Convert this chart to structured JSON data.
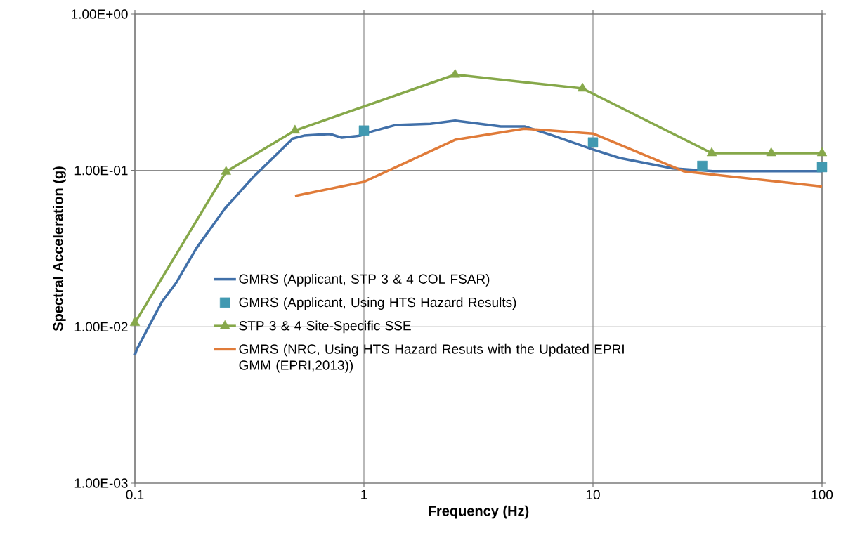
{
  "chart_data": {
    "type": "line",
    "xlabel": "Frequency (Hz)",
    "ylabel": "Spectral Acceleration (g)",
    "log": "xy",
    "grid": true,
    "legend": "left",
    "xlim": [
      0.1,
      100
    ],
    "xticks": [
      0.1,
      1,
      10,
      100
    ],
    "ylim": [
      0.001,
      1
    ],
    "yticks": [
      {
        "value": 0.001,
        "label": "1.00E-03"
      },
      {
        "value": 0.01,
        "label": "1.00E-02"
      },
      {
        "value": 0.1,
        "label": "1.00E-01"
      },
      {
        "value": 1,
        "label": "1.00E+00"
      }
    ],
    "series": [
      {
        "name": "GMRS (Applicant, STP 3 & 4 COL FSAR)",
        "color": "#4170a9",
        "x": [
          0.1,
          0.102,
          0.131,
          0.151,
          0.186,
          0.247,
          0.327,
          0.414,
          0.489,
          0.548,
          0.71,
          0.8,
          0.965,
          1.09,
          1.37,
          1.95,
          2.5,
          3.96,
          5.05,
          6.7,
          10,
          13.1,
          22.3,
          33.4,
          100
        ],
        "values": [
          0.0066,
          0.0072,
          0.0144,
          0.019,
          0.032,
          0.057,
          0.09,
          0.126,
          0.16,
          0.167,
          0.171,
          0.162,
          0.167,
          0.178,
          0.195,
          0.199,
          0.208,
          0.191,
          0.191,
          0.167,
          0.136,
          0.12,
          0.103,
          0.099,
          0.099
        ]
      },
      {
        "name": "GMRS (Applicant, Using HTS Hazard Results)",
        "type": "scatter",
        "marker": "square",
        "color": "#4199b1",
        "x": [
          1,
          10,
          30,
          100
        ],
        "values": [
          0.18,
          0.151,
          0.107,
          0.105
        ]
      },
      {
        "name": "STP 3 & 4 Site-Specific SSE",
        "marker": "triangle",
        "color": "#86a84a",
        "x": [
          0.1,
          0.25,
          0.5,
          2.5,
          9,
          33,
          60,
          100
        ],
        "values": [
          0.0106,
          0.098,
          0.18,
          0.41,
          0.334,
          0.129,
          0.129,
          0.129
        ]
      },
      {
        "name": "GMRS (NRC, Using HTS Hazard Resuts with the Updated EPRI GMM (EPRI,2013))",
        "color": "#e07b39",
        "x": [
          0.5,
          1,
          2.5,
          5,
          10,
          25,
          100
        ],
        "values": [
          0.0687,
          0.0845,
          0.157,
          0.185,
          0.172,
          0.0986,
          0.079
        ]
      }
    ]
  }
}
